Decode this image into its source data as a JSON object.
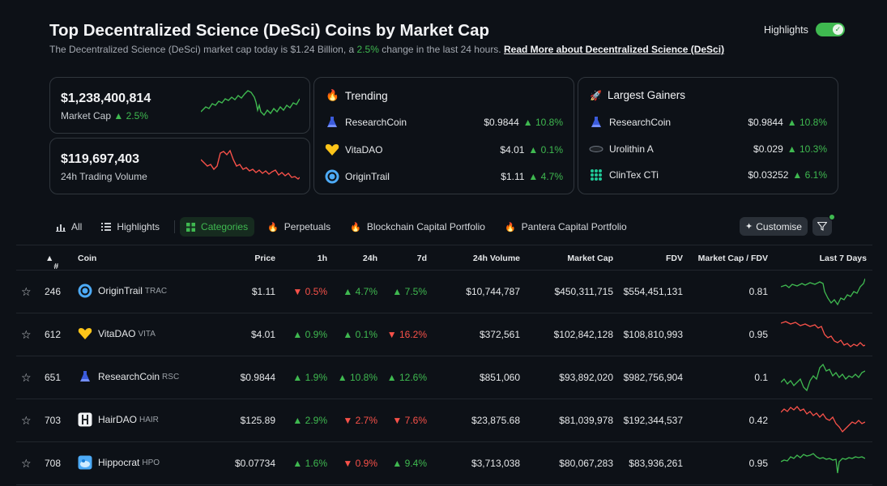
{
  "header": {
    "title": "Top Decentralized Science (DeSci) Coins by Market Cap",
    "subtitle_prefix": "The Decentralized Science (DeSci) market cap today is $1.24 Billion, a ",
    "subtitle_change": "2.5%",
    "subtitle_suffix": " change in the last 24 hours. ",
    "read_more": "Read More about Decentralized Science (DeSci)",
    "highlights_label": "Highlights",
    "highlights_on": true
  },
  "stats": {
    "market_cap": {
      "value": "$1,238,400,814",
      "label": "Market Cap",
      "change": "2.5%",
      "trend": "up"
    },
    "volume": {
      "value": "$119,697,403",
      "label": "24h Trading Volume",
      "trend": "down"
    }
  },
  "trending": {
    "title": "Trending",
    "items": [
      {
        "name": "ResearchCoin",
        "price": "$0.9844",
        "change": "10.8%",
        "icon": "flask-icon"
      },
      {
        "name": "VitaDAO",
        "price": "$4.01",
        "change": "0.1%",
        "icon": "heart-icon"
      },
      {
        "name": "OriginTrail",
        "price": "$1.11",
        "change": "4.7%",
        "icon": "origintrail-icon"
      }
    ]
  },
  "gainers": {
    "title": "Largest Gainers",
    "items": [
      {
        "name": "ResearchCoin",
        "price": "$0.9844",
        "change": "10.8%",
        "icon": "flask-icon"
      },
      {
        "name": "Urolithin A",
        "price": "$0.029",
        "change": "10.3%",
        "icon": "urolithin-icon"
      },
      {
        "name": "ClinTex CTi",
        "price": "$0.03252",
        "change": "6.1%",
        "icon": "clintex-icon"
      }
    ]
  },
  "tabs": [
    {
      "label": "All",
      "icon": "bar-chart-icon",
      "active": false
    },
    {
      "label": "Highlights",
      "icon": "list-icon",
      "active": false
    },
    {
      "label": "Categories",
      "icon": "grid-icon",
      "active": true
    },
    {
      "label": "Perpetuals",
      "icon": "fire-icon",
      "active": false
    },
    {
      "label": "Blockchain Capital Portfolio",
      "icon": "fire-icon",
      "active": false
    },
    {
      "label": "Pantera Capital Portfolio",
      "icon": "fire-icon",
      "active": false
    }
  ],
  "toolbar": {
    "customise": "Customise"
  },
  "table": {
    "columns": {
      "rank": "#",
      "coin": "Coin",
      "price": "Price",
      "h1": "1h",
      "h24": "24h",
      "d7": "7d",
      "volume": "24h Volume",
      "mcap": "Market Cap",
      "fdv": "FDV",
      "ratio": "Market Cap / FDV",
      "spark": "Last 7 Days"
    },
    "rows": [
      {
        "rank": "246",
        "name": "OriginTrail",
        "symbol": "TRAC",
        "icon": "origintrail-icon",
        "price": "$1.11",
        "h1": "0.5%",
        "h1_dir": "down",
        "h24": "4.7%",
        "h24_dir": "up",
        "d7": "7.5%",
        "d7_dir": "up",
        "volume": "$10,744,787",
        "mcap": "$450,311,715",
        "fdv": "$554,451,131",
        "ratio": "0.81",
        "trend": "up"
      },
      {
        "rank": "612",
        "name": "VitaDAO",
        "symbol": "VITA",
        "icon": "heart-icon",
        "price": "$4.01",
        "h1": "0.9%",
        "h1_dir": "up",
        "h24": "0.1%",
        "h24_dir": "up",
        "d7": "16.2%",
        "d7_dir": "down",
        "volume": "$372,561",
        "mcap": "$102,842,128",
        "fdv": "$108,810,993",
        "ratio": "0.95",
        "trend": "down"
      },
      {
        "rank": "651",
        "name": "ResearchCoin",
        "symbol": "RSC",
        "icon": "flask-icon",
        "price": "$0.9844",
        "h1": "1.9%",
        "h1_dir": "up",
        "h24": "10.8%",
        "h24_dir": "up",
        "d7": "12.6%",
        "d7_dir": "up",
        "volume": "$851,060",
        "mcap": "$93,892,020",
        "fdv": "$982,756,904",
        "ratio": "0.1",
        "trend": "up"
      },
      {
        "rank": "703",
        "name": "HairDAO",
        "symbol": "HAIR",
        "icon": "hairdao-icon",
        "price": "$125.89",
        "h1": "2.9%",
        "h1_dir": "up",
        "h24": "2.7%",
        "h24_dir": "down",
        "d7": "7.6%",
        "d7_dir": "down",
        "volume": "$23,875.68",
        "mcap": "$81,039,978",
        "fdv": "$192,344,537",
        "ratio": "0.42",
        "trend": "down"
      },
      {
        "rank": "708",
        "name": "Hippocrat",
        "symbol": "HPO",
        "icon": "hippocrat-icon",
        "price": "$0.07734",
        "h1": "1.6%",
        "h1_dir": "up",
        "h24": "0.9%",
        "h24_dir": "down",
        "d7": "9.4%",
        "d7_dir": "up",
        "volume": "$3,713,038",
        "mcap": "$80,067,283",
        "fdv": "$83,936,261",
        "ratio": "0.95",
        "trend": "up"
      }
    ]
  },
  "colors": {
    "up": "#3fb950",
    "down": "#f85149",
    "background": "#0d1117",
    "border": "#30363d"
  }
}
